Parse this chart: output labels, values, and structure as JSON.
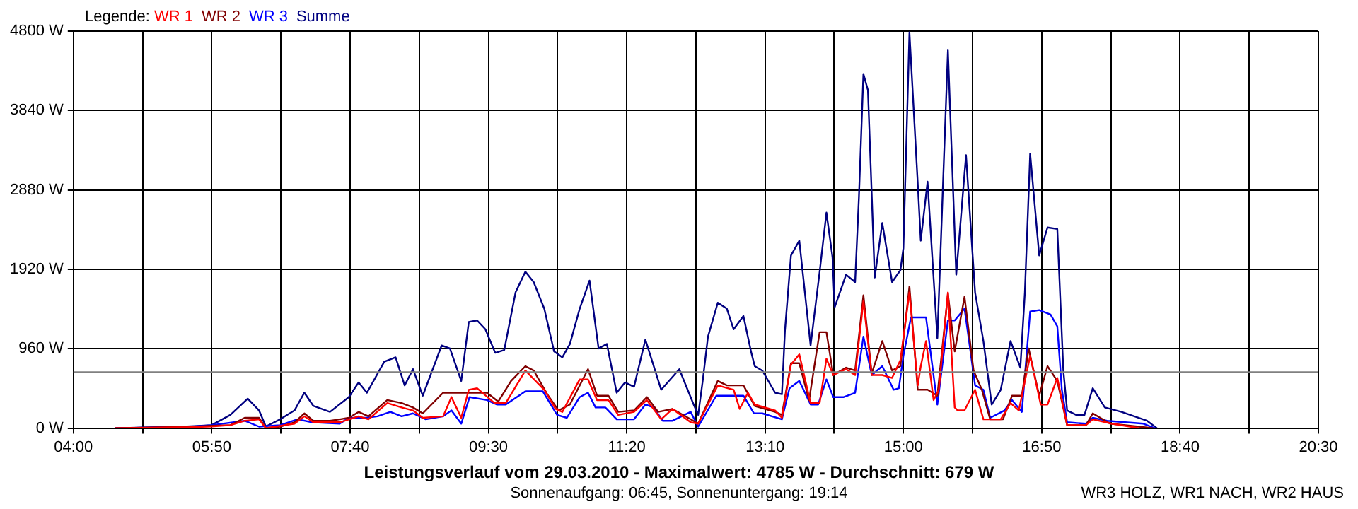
{
  "chart_data": {
    "type": "line",
    "title": "Leistungsverlauf vom 29.03.2010 - Maximalwert: 4785 W - Durchschnitt: 679 W",
    "subtitle": "Sonnenaufgang: 06:45, Sonnenuntergang: 19:14",
    "annotations": [
      "WR3 HOLZ, WR1 NACH, WR2 HAUS"
    ],
    "legend_title": "Legende:",
    "legend": "top left",
    "grid": true,
    "marker": "none",
    "xlim": [
      4,
      20.5
    ],
    "xticks": [
      {
        "value": 4,
        "label": "04:00"
      },
      {
        "value": 4.9167,
        "label": null
      },
      {
        "value": 5.8333,
        "label": "05:50"
      },
      {
        "value": 6.75,
        "label": null
      },
      {
        "value": 7.6667,
        "label": "07:40"
      },
      {
        "value": 8.5833,
        "label": null
      },
      {
        "value": 9.5,
        "label": "09:30"
      },
      {
        "value": 10.4167,
        "label": null
      },
      {
        "value": 11.3333,
        "label": "11:20"
      },
      {
        "value": 12.25,
        "label": null
      },
      {
        "value": 13.1667,
        "label": "13:10"
      },
      {
        "value": 14.0833,
        "label": null
      },
      {
        "value": 15,
        "label": "15:00"
      },
      {
        "value": 15.9167,
        "label": null
      },
      {
        "value": 16.8333,
        "label": "16:50"
      },
      {
        "value": 17.75,
        "label": null
      },
      {
        "value": 18.6667,
        "label": "18:40"
      },
      {
        "value": 19.5833,
        "label": null
      },
      {
        "value": 20.5,
        "label": "20:30"
      }
    ],
    "ylim": [
      0,
      4800
    ],
    "yticks": [
      {
        "value": 0,
        "label": "0 W"
      },
      {
        "value": 960,
        "label": "960 W"
      },
      {
        "value": 1920,
        "label": "1920 W"
      },
      {
        "value": 2880,
        "label": "2880 W"
      },
      {
        "value": 3840,
        "label": "3840 W"
      },
      {
        "value": 4800,
        "label": "4800 W"
      }
    ],
    "ref_lines": [
      {
        "axis": "y",
        "value": 679,
        "color": "#808080"
      }
    ],
    "series": [
      {
        "name": "WR 1",
        "color": "#ff0000",
        "x": [
          4.55,
          5.51,
          5.83,
          6.08,
          6.27,
          6.46,
          6.55,
          6.93,
          7.06,
          7.18,
          7.53,
          7.78,
          7.91,
          8.16,
          8.35,
          8.5,
          8.63,
          8.9,
          9.01,
          9.14,
          9.24,
          9.35,
          9.58,
          9.73,
          9.99,
          10.24,
          10.39,
          10.48,
          10.71,
          10.82,
          10.94,
          11.09,
          11.22,
          11.43,
          11.6,
          11.79,
          11.94,
          12.18,
          12.28,
          12.54,
          12.75,
          12.83,
          12.94,
          13.03,
          13.3,
          13.39,
          13.51,
          13.62,
          13.77,
          13.89,
          13.98,
          14.07,
          14.24,
          14.36,
          14.47,
          14.58,
          14.72,
          14.85,
          14.96,
          15.08,
          15.19,
          15.23,
          15.3,
          15.4,
          15.47,
          15.59,
          15.68,
          15.72,
          15.81,
          15.95,
          16.06,
          16.29,
          16.42,
          16.53,
          16.68,
          16.82,
          16.91,
          17.04,
          17.17,
          17.42,
          17.51,
          17.76,
          18.12
        ],
        "values": [
          0,
          10,
          20,
          36,
          89,
          107,
          0,
          54,
          143,
          71,
          71,
          143,
          107,
          303,
          250,
          214,
          125,
          143,
          375,
          125,
          464,
          482,
          303,
          303,
          696,
          464,
          232,
          196,
          589,
          589,
          339,
          339,
          160,
          196,
          339,
          107,
          232,
          71,
          54,
          517,
          464,
          232,
          428,
          285,
          214,
          125,
          767,
          892,
          303,
          303,
          838,
          642,
          713,
          642,
          1534,
          642,
          642,
          607,
          821,
          1641,
          517,
          749,
          1053,
          339,
          464,
          1641,
          250,
          214,
          214,
          464,
          107,
          107,
          303,
          214,
          874,
          285,
          285,
          607,
          36,
          36,
          107,
          54,
          0
        ]
      },
      {
        "name": "WR 2",
        "color": "#800000",
        "x": [
          4.55,
          5.51,
          5.83,
          6.08,
          6.27,
          6.46,
          6.55,
          6.74,
          6.93,
          7.06,
          7.18,
          7.4,
          7.53,
          7.65,
          7.78,
          7.91,
          8.16,
          8.35,
          8.5,
          8.63,
          8.9,
          9.14,
          9.48,
          9.63,
          9.8,
          9.99,
          10.1,
          10.28,
          10.43,
          10.58,
          10.82,
          10.94,
          11.09,
          11.22,
          11.43,
          11.6,
          11.75,
          11.94,
          12.18,
          12.28,
          12.54,
          12.66,
          12.88,
          13.03,
          13.3,
          13.39,
          13.51,
          13.62,
          13.75,
          13.89,
          13.98,
          14.07,
          14.24,
          14.36,
          14.47,
          14.58,
          14.72,
          14.85,
          14.96,
          15.08,
          15.19,
          15.32,
          15.45,
          15.59,
          15.68,
          15.81,
          15.93,
          16.04,
          16.15,
          16.32,
          16.44,
          16.57,
          16.66,
          16.8,
          16.91,
          17.04,
          17.17,
          17.42,
          17.51,
          17.74,
          18.12,
          18.31
        ],
        "values": [
          0,
          15,
          30,
          36,
          125,
          125,
          0,
          18,
          71,
          178,
          89,
          89,
          107,
          125,
          196,
          143,
          339,
          303,
          250,
          178,
          428,
          428,
          428,
          321,
          571,
          749,
          696,
          410,
          214,
          285,
          713,
          392,
          392,
          196,
          214,
          375,
          196,
          232,
          107,
          54,
          571,
          517,
          517,
          268,
          196,
          160,
          785,
          785,
          339,
          1160,
          1160,
          642,
          731,
          696,
          1606,
          660,
          1053,
          696,
          749,
          1713,
          464,
          464,
          392,
          1623,
          928,
          1588,
          696,
          464,
          107,
          107,
          392,
          392,
          963,
          392,
          749,
          571,
          36,
          36,
          178,
          54,
          18,
          0
        ]
      },
      {
        "name": "WR 3",
        "color": "#0000ff",
        "x": [
          4.55,
          5.51,
          5.83,
          6.27,
          6.46,
          6.74,
          6.97,
          7.16,
          7.53,
          7.65,
          7.87,
          8.03,
          8.2,
          8.35,
          8.5,
          8.67,
          8.9,
          9.01,
          9.14,
          9.25,
          9.48,
          9.61,
          9.73,
          9.99,
          10.22,
          10.41,
          10.54,
          10.71,
          10.82,
          10.92,
          11.05,
          11.2,
          11.43,
          11.58,
          11.69,
          11.81,
          11.94,
          12.18,
          12.28,
          12.52,
          12.88,
          13.02,
          13.13,
          13.39,
          13.49,
          13.62,
          13.77,
          13.87,
          13.98,
          14.07,
          14.21,
          14.36,
          14.47,
          14.58,
          14.72,
          14.87,
          14.94,
          15,
          15.1,
          15.3,
          15.45,
          15.59,
          15.68,
          15.81,
          15.87,
          15.95,
          16.06,
          16.15,
          16.34,
          16.44,
          16.57,
          16.68,
          16.8,
          16.95,
          17.04,
          17.1,
          17.17,
          17.42,
          17.51,
          17.7,
          18.18,
          18.33
        ],
        "values": [
          0,
          15,
          36,
          89,
          18,
          36,
          107,
          71,
          54,
          125,
          125,
          143,
          196,
          143,
          178,
          107,
          143,
          214,
          54,
          375,
          339,
          285,
          285,
          446,
          446,
          160,
          125,
          375,
          428,
          250,
          250,
          107,
          107,
          285,
          250,
          89,
          89,
          196,
          18,
          392,
          392,
          178,
          178,
          107,
          482,
          571,
          285,
          285,
          589,
          375,
          375,
          428,
          1106,
          642,
          749,
          464,
          482,
          874,
          1338,
          1338,
          285,
          1302,
          1302,
          1445,
          1053,
          517,
          464,
          125,
          214,
          339,
          196,
          1409,
          1427,
          1374,
          1231,
          464,
          71,
          54,
          125,
          89,
          54,
          0
        ]
      },
      {
        "name": "Summe",
        "color": "#000080",
        "x": [
          4.55,
          5.51,
          5.83,
          6.08,
          6.31,
          6.46,
          6.55,
          6.74,
          6.93,
          7.06,
          7.18,
          7.4,
          7.65,
          7.78,
          7.89,
          8.12,
          8.27,
          8.39,
          8.5,
          8.63,
          8.88,
          8.99,
          9.14,
          9.24,
          9.35,
          9.46,
          9.59,
          9.71,
          9.86,
          9.99,
          10.1,
          10.24,
          10.37,
          10.48,
          10.58,
          10.71,
          10.84,
          10.96,
          11.07,
          11.2,
          11.31,
          11.43,
          11.58,
          11.79,
          12.03,
          12.22,
          12.28,
          12.34,
          12.41,
          12.54,
          12.66,
          12.75,
          12.88,
          12.98,
          13.03,
          13.13,
          13.3,
          13.39,
          13.43,
          13.51,
          13.62,
          13.77,
          13.89,
          13.98,
          14.06,
          14.09,
          14.24,
          14.36,
          14.41,
          14.47,
          14.53,
          14.62,
          14.72,
          14.85,
          14.96,
          15,
          15.08,
          15.19,
          15.23,
          15.32,
          15.45,
          15.59,
          15.7,
          15.83,
          15.95,
          16.06,
          16.17,
          16.29,
          16.42,
          16.55,
          16.61,
          16.68,
          16.8,
          16.91,
          17.04,
          17.12,
          17.17,
          17.29,
          17.4,
          17.51,
          17.67,
          17.89,
          18.23,
          18.36
        ],
        "values": [
          0,
          20,
          36,
          160,
          357,
          214,
          20,
          107,
          214,
          428,
          268,
          196,
          375,
          553,
          428,
          803,
          856,
          517,
          713,
          392,
          999,
          963,
          571,
          1284,
          1302,
          1195,
          910,
          945,
          1641,
          1891,
          1766,
          1445,
          928,
          856,
          1017,
          1445,
          1784,
          963,
          1017,
          428,
          553,
          500,
          1070,
          464,
          713,
          285,
          160,
          571,
          1106,
          1516,
          1445,
          1195,
          1356,
          928,
          749,
          696,
          428,
          410,
          1177,
          2087,
          2266,
          999,
          1891,
          2605,
          2069,
          1463,
          1855,
          1766,
          2783,
          4282,
          4085,
          1820,
          2480,
          1766,
          1909,
          2176,
          4785,
          2961,
          2266,
          2979,
          1088,
          4567,
          1855,
          3300,
          1641,
          1053,
          285,
          464,
          1053,
          731,
          1641,
          3318,
          2087,
          2426,
          2408,
          696,
          214,
          160,
          160,
          482,
          250,
          196,
          89,
          0
        ]
      }
    ]
  }
}
